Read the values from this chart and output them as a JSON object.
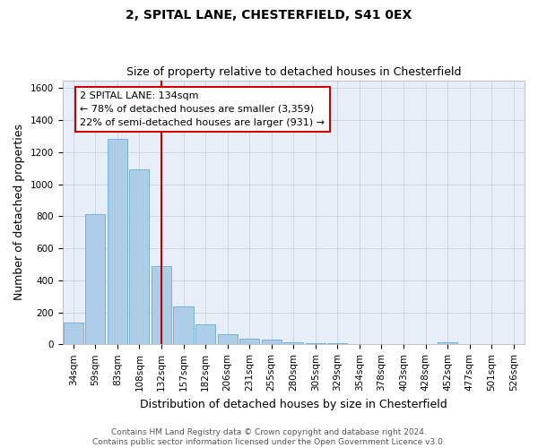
{
  "title1": "2, SPITAL LANE, CHESTERFIELD, S41 0EX",
  "title2": "Size of property relative to detached houses in Chesterfield",
  "xlabel": "Distribution of detached houses by size in Chesterfield",
  "ylabel": "Number of detached properties",
  "bin_labels": [
    "34sqm",
    "59sqm",
    "83sqm",
    "108sqm",
    "132sqm",
    "157sqm",
    "182sqm",
    "206sqm",
    "231sqm",
    "255sqm",
    "280sqm",
    "305sqm",
    "329sqm",
    "354sqm",
    "378sqm",
    "403sqm",
    "428sqm",
    "452sqm",
    "477sqm",
    "501sqm",
    "526sqm"
  ],
  "bar_values": [
    135,
    815,
    1285,
    1095,
    490,
    238,
    127,
    65,
    38,
    27,
    13,
    8,
    8,
    0,
    0,
    0,
    0,
    13,
    0,
    0,
    0
  ],
  "bar_color": "#aecde8",
  "bar_edge_color": "#6aaad4",
  "marker_line_color": "#cc0000",
  "annotation_text": "2 SPITAL LANE: 134sqm\n← 78% of detached houses are smaller (3,359)\n22% of semi-detached houses are larger (931) →",
  "annotation_box_color": "#ffffff",
  "annotation_box_edge": "#cc0000",
  "ylim": [
    0,
    1650
  ],
  "yticks": [
    0,
    200,
    400,
    600,
    800,
    1000,
    1200,
    1400,
    1600
  ],
  "footer_text": "Contains HM Land Registry data © Crown copyright and database right 2024.\nContains public sector information licensed under the Open Government Licence v3.0.",
  "grid_color": "#c8d4e4",
  "bg_color": "#e8eef8",
  "title1_fontsize": 10,
  "title2_fontsize": 9,
  "axis_label_fontsize": 9,
  "tick_fontsize": 7.5,
  "annotation_fontsize": 8,
  "footer_fontsize": 6.5
}
